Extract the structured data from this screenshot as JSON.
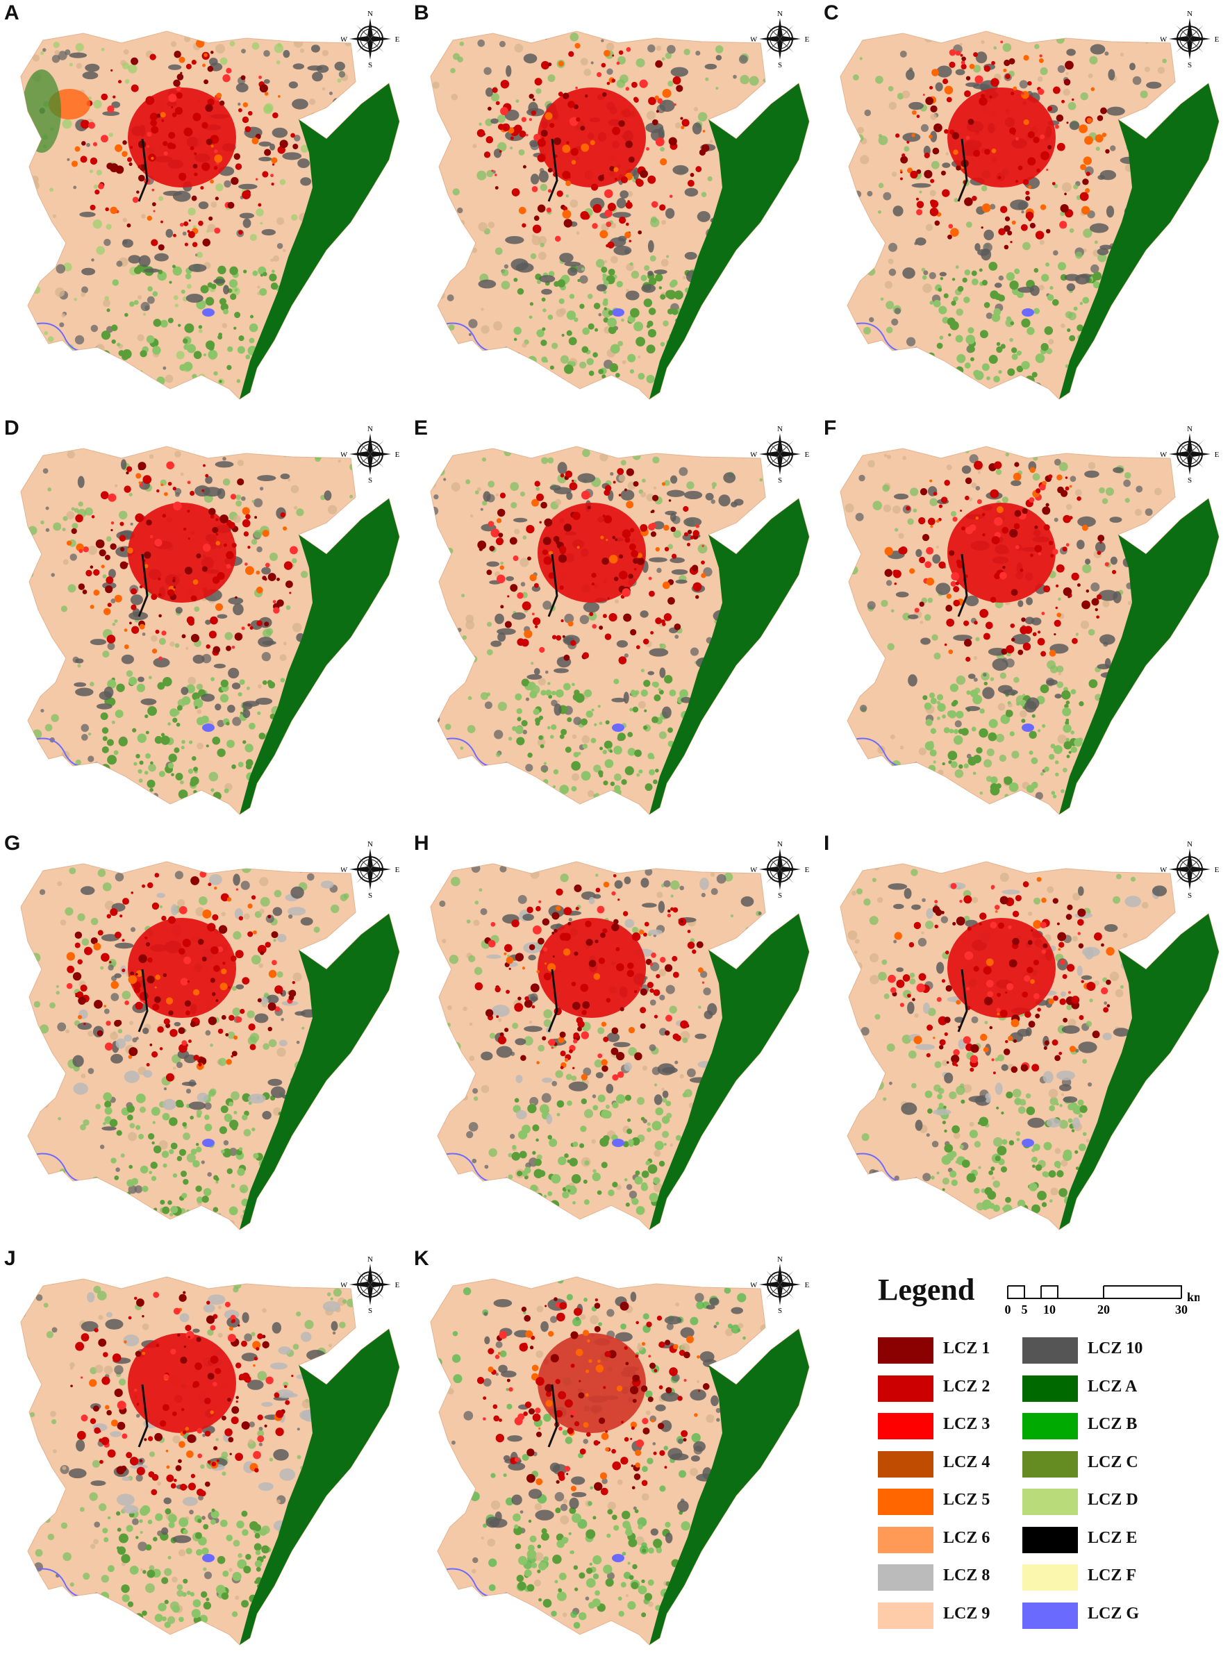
{
  "panels": [
    {
      "letter": "A",
      "variant": 0
    },
    {
      "letter": "B",
      "variant": 1
    },
    {
      "letter": "C",
      "variant": 2
    },
    {
      "letter": "D",
      "variant": 3
    },
    {
      "letter": "E",
      "variant": 4
    },
    {
      "letter": "F",
      "variant": 5
    },
    {
      "letter": "G",
      "variant": 6
    },
    {
      "letter": "H",
      "variant": 7
    },
    {
      "letter": "I",
      "variant": 8
    },
    {
      "letter": "J",
      "variant": 9
    },
    {
      "letter": "K",
      "variant": 10
    }
  ],
  "compass": {
    "n": "N",
    "s": "S",
    "e": "E",
    "w": "W"
  },
  "legend": {
    "title": "Legend",
    "scale": {
      "ticks": [
        "0",
        "5",
        "10",
        "20",
        "30"
      ],
      "unit": "km"
    },
    "left_column": [
      {
        "label": "LCZ 1",
        "color": "#8b0000"
      },
      {
        "label": "LCZ 2",
        "color": "#cc0000"
      },
      {
        "label": "LCZ 3",
        "color": "#ff0000"
      },
      {
        "label": "LCZ 4",
        "color": "#bf4c00"
      },
      {
        "label": "LCZ 5",
        "color": "#ff6600"
      },
      {
        "label": "LCZ 6",
        "color": "#ff9955"
      },
      {
        "label": "LCZ 8",
        "color": "#bbbbbb"
      },
      {
        "label": "LCZ 9",
        "color": "#ffccaa"
      }
    ],
    "right_column": [
      {
        "label": "LCZ 10",
        "color": "#555555"
      },
      {
        "label": "LCZ A",
        "color": "#006a00"
      },
      {
        "label": "LCZ B",
        "color": "#00aa00"
      },
      {
        "label": "LCZ C",
        "color": "#648c23"
      },
      {
        "label": "LCZ D",
        "color": "#b9db79"
      },
      {
        "label": "LCZ E",
        "color": "#000000"
      },
      {
        "label": "LCZ F",
        "color": "#fbf7ae"
      },
      {
        "label": "LCZ G",
        "color": "#6a6aff"
      }
    ]
  }
}
